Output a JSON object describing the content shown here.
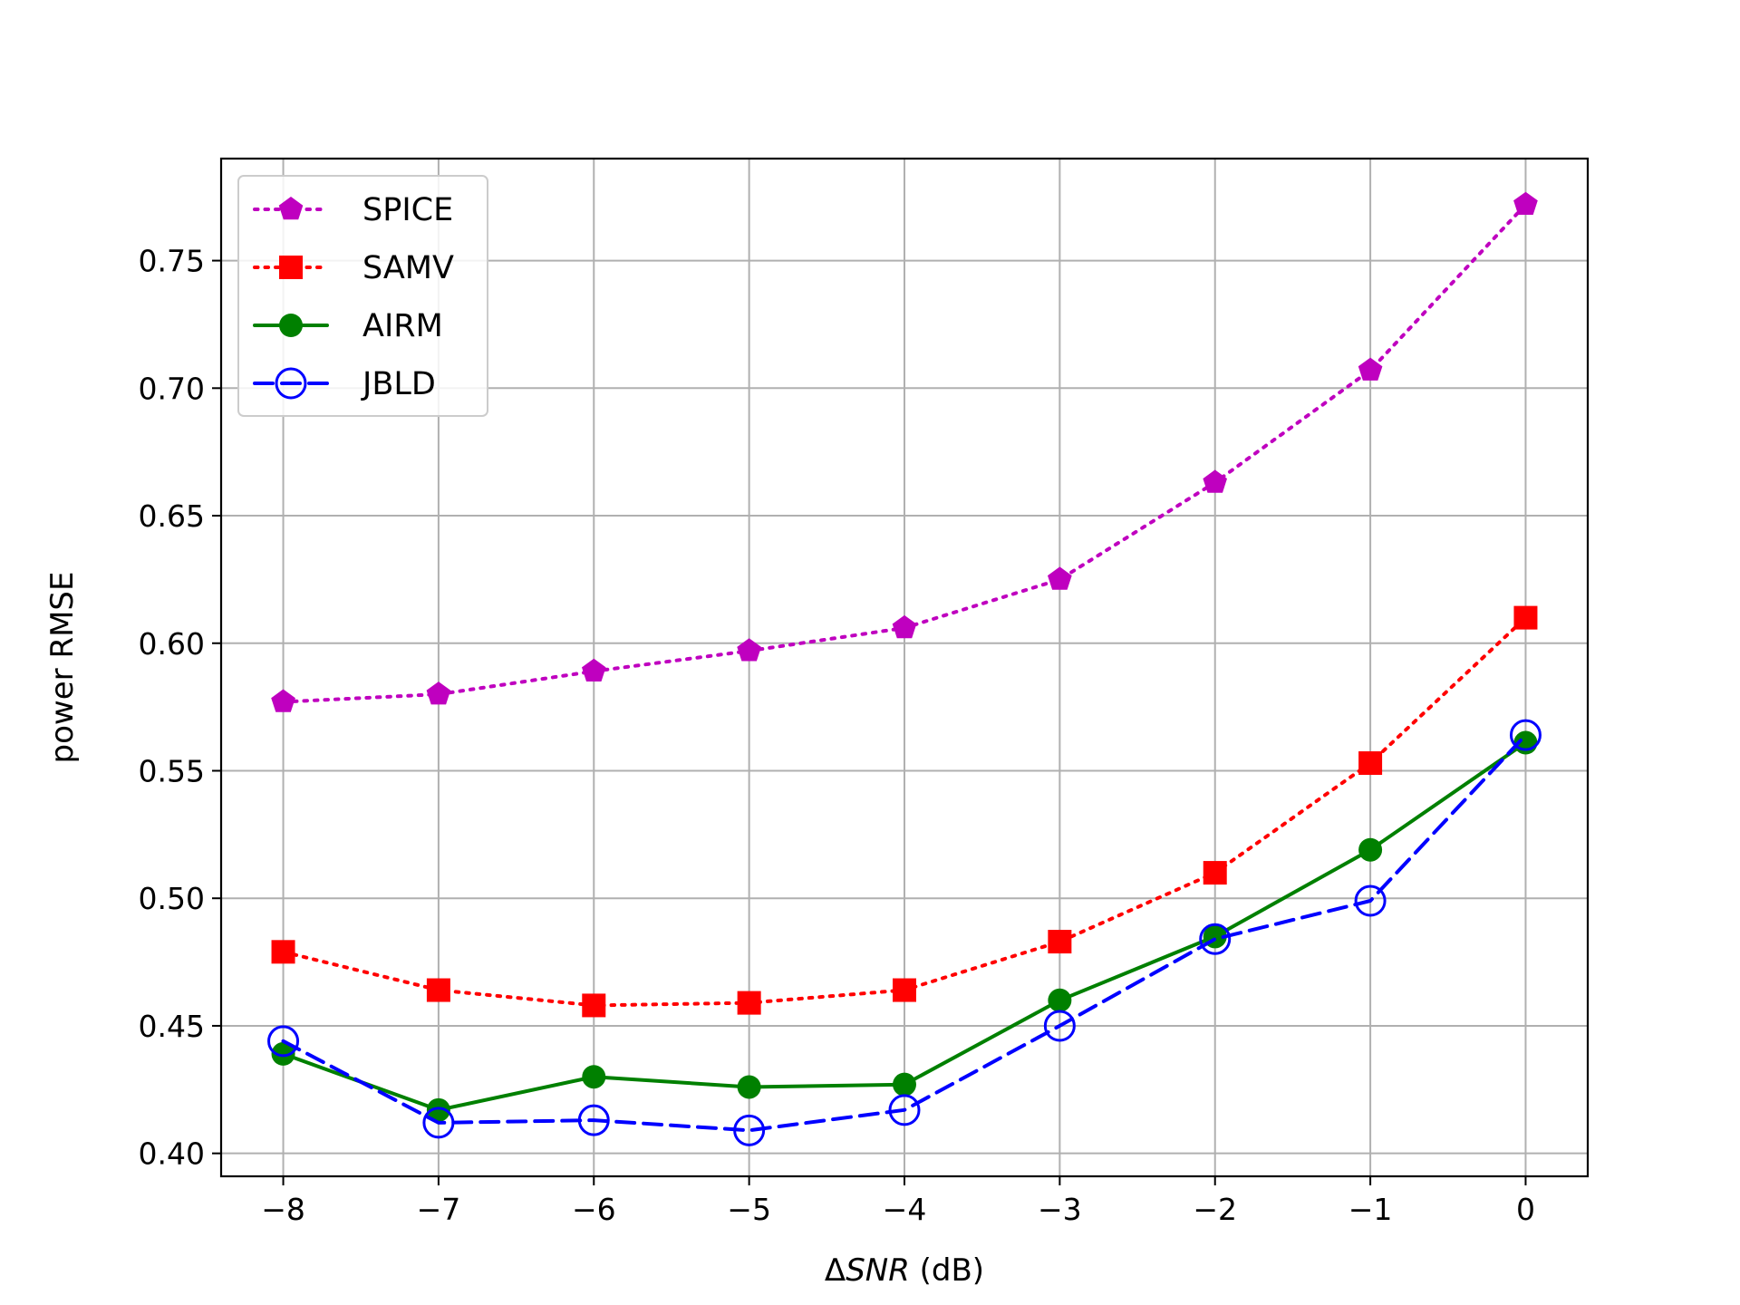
{
  "chart_data": {
    "type": "line",
    "xlabel_prefix": "Δ",
    "xlabel_var": "SNR",
    "xlabel_unit": " (dB)",
    "ylabel": "power RMSE",
    "xlim": [
      -8.4,
      0.4
    ],
    "ylim": [
      0.391,
      0.79
    ],
    "xticks": [
      -8,
      -7,
      -6,
      -5,
      -4,
      -3,
      -2,
      -1,
      0
    ],
    "xtick_labels": [
      "−8",
      "−7",
      "−6",
      "−5",
      "−4",
      "−3",
      "−2",
      "−1",
      "0"
    ],
    "yticks": [
      0.4,
      0.45,
      0.5,
      0.55,
      0.6,
      0.65,
      0.7,
      0.75
    ],
    "ytick_labels": [
      "0.40",
      "0.45",
      "0.50",
      "0.55",
      "0.60",
      "0.65",
      "0.70",
      "0.75"
    ],
    "grid": true,
    "legend_position": "top-left",
    "x": [
      -8,
      -7,
      -6,
      -5,
      -4,
      -3,
      -2,
      -1,
      0
    ],
    "series": [
      {
        "name": "SPICE",
        "color": "#bf00bf",
        "marker": "pentagon",
        "line": "dotted",
        "values": [
          0.577,
          0.58,
          0.589,
          0.597,
          0.606,
          0.625,
          0.663,
          0.707,
          0.772
        ]
      },
      {
        "name": "SAMV",
        "color": "#ff0000",
        "marker": "square",
        "line": "dotted",
        "values": [
          0.479,
          0.464,
          0.458,
          0.459,
          0.464,
          0.483,
          0.51,
          0.553,
          0.61
        ]
      },
      {
        "name": "AIRM",
        "color": "#008000",
        "marker": "circle",
        "line": "solid",
        "values": [
          0.439,
          0.417,
          0.43,
          0.426,
          0.427,
          0.46,
          0.485,
          0.519,
          0.561
        ]
      },
      {
        "name": "JBLD",
        "color": "#0000ff",
        "marker": "open-circle",
        "line": "dashed",
        "values": [
          0.444,
          0.412,
          0.413,
          0.409,
          0.417,
          0.45,
          0.484,
          0.499,
          0.564
        ]
      }
    ]
  }
}
